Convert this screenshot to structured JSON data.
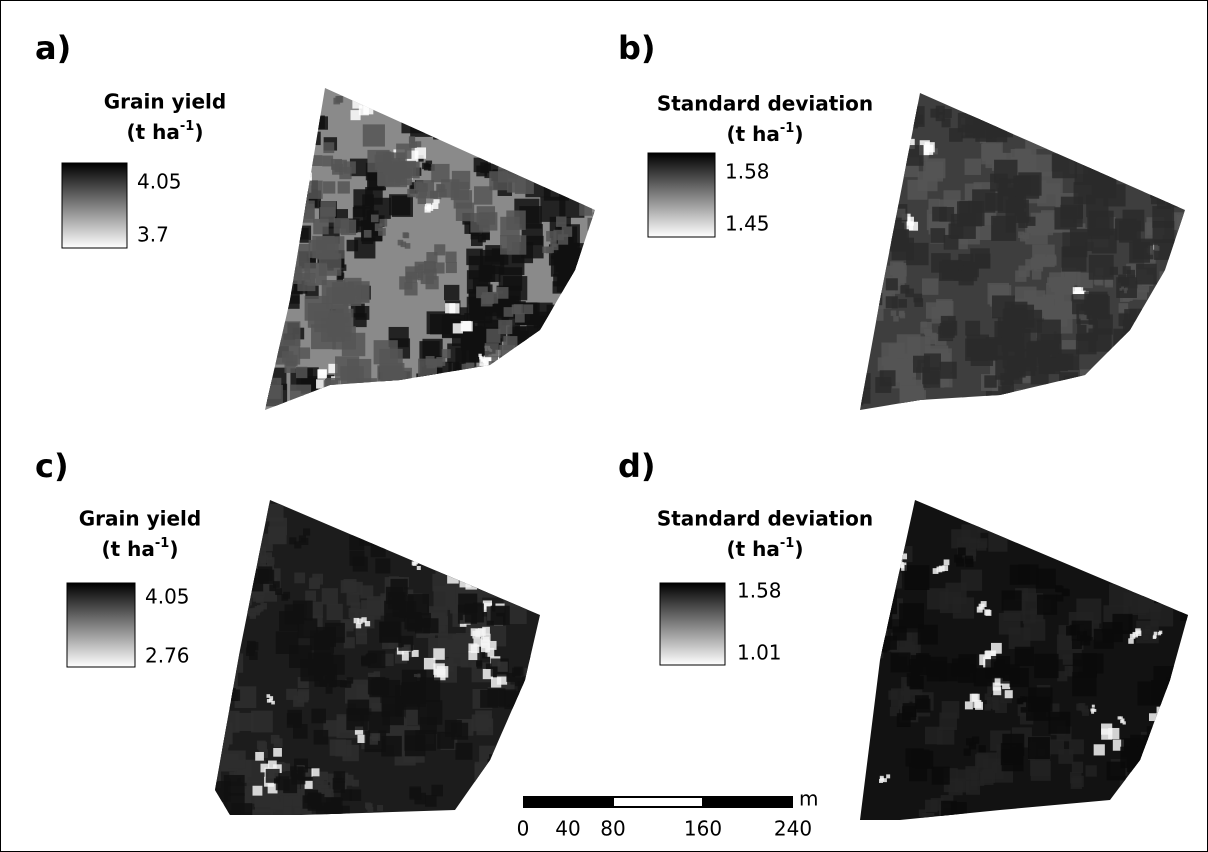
{
  "panels": [
    {
      "label": "a)",
      "legend_title": "Grain yield",
      "unit_prefix": "(t ha",
      "unit_exp": "-1",
      "unit_suffix": ")",
      "max": 4.05,
      "min": 3.7
    },
    {
      "label": "b)",
      "legend_title": "Standard deviation",
      "unit_prefix": "(t ha",
      "unit_exp": "-1",
      "unit_suffix": ")",
      "max": 1.58,
      "min": 1.45
    },
    {
      "label": "c)",
      "legend_title": "Grain yield",
      "unit_prefix": "(t ha",
      "unit_exp": "-1",
      "unit_suffix": ")",
      "max": 4.05,
      "min": 2.76
    },
    {
      "label": "d)",
      "legend_title": "Standard deviation",
      "unit_prefix": "(t ha",
      "unit_exp": "-1",
      "unit_suffix": ")",
      "max": 1.58,
      "min": 1.01
    }
  ],
  "scale_bar": {
    "unit": "m",
    "ticks": [
      0,
      40,
      80,
      160,
      240
    ]
  }
}
